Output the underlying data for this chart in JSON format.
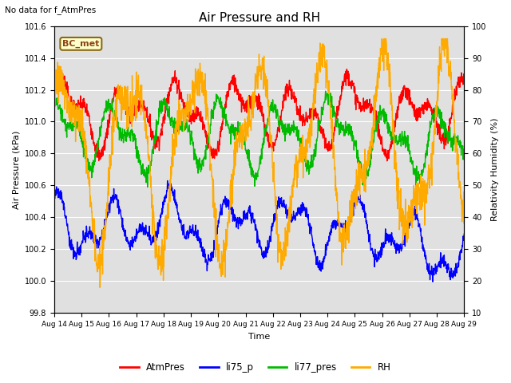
{
  "title": "Air Pressure and RH",
  "top_left_text": "No data for f_AtmPres",
  "annotation_text": "BC_met",
  "xlabel": "Time",
  "ylabel_left": "Air Pressure (kPa)",
  "ylabel_right": "Relativity Humidity (%)",
  "ylim_left": [
    99.8,
    101.6
  ],
  "ylim_right": [
    10,
    100
  ],
  "yticks_left": [
    99.8,
    100.0,
    100.2,
    100.4,
    100.6,
    100.8,
    101.0,
    101.2,
    101.4,
    101.6
  ],
  "yticks_right": [
    10,
    20,
    30,
    40,
    50,
    60,
    70,
    80,
    90,
    100
  ],
  "colors": {
    "AtmPres": "#ff0000",
    "li75_p": "#0000ff",
    "li77_pres": "#00bb00",
    "RH": "#ffaa00"
  },
  "line_width": 1.0,
  "bg_color": "#e0e0e0",
  "xtick_labels": [
    "Aug 14",
    "Aug 15",
    "Aug 16",
    "Aug 17",
    "Aug 18",
    "Aug 19",
    "Aug 20",
    "Aug 21",
    "Aug 22",
    "Aug 23",
    "Aug 24",
    "Aug 25",
    "Aug 26",
    "Aug 27",
    "Aug 28",
    "Aug 29"
  ]
}
